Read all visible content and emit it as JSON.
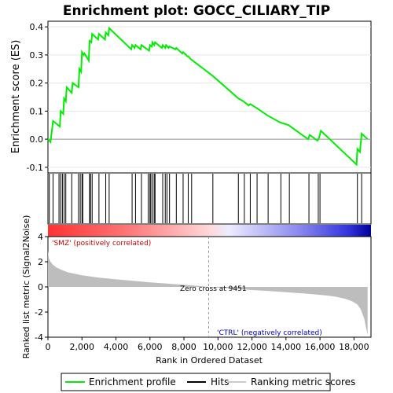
{
  "chart_data": {
    "type": "line",
    "title": "Enrichment plot: GOCC_CILIARY_TIP",
    "top_panel": {
      "ylabel": "Enrichment score (ES)",
      "ylim": [
        -0.12,
        0.42
      ],
      "yticks": [
        -0.1,
        0.0,
        0.1,
        0.2,
        0.3,
        0.4
      ],
      "ytick_labels": [
        "-0.1",
        "0.0",
        "0.1",
        "0.2",
        "0.3",
        "0.4"
      ],
      "line_color": "#00ee00",
      "series": [
        {
          "name": "Enrichment profile",
          "x": [
            0,
            150,
            300,
            700,
            750,
            900,
            950,
            1050,
            1100,
            1400,
            1450,
            1800,
            1850,
            1950,
            2000,
            2100,
            2150,
            2400,
            2450,
            2550,
            2600,
            2950,
            3000,
            3350,
            3400,
            3550,
            3600,
            4900,
            4950,
            5100,
            5150,
            5450,
            5500,
            5950,
            6000,
            6100,
            6150,
            6250,
            6300,
            6700,
            6750,
            6900,
            6950,
            7100,
            7150,
            7500,
            7550,
            7900,
            7950,
            8200,
            8250,
            8400,
            9700,
            11200,
            11500,
            11800,
            11900,
            12300,
            12900,
            13650,
            14150,
            15300,
            15400,
            15850,
            15950,
            16050,
            18150,
            18200,
            18350,
            18450,
            18800
          ],
          "y": [
            0.0,
            -0.01,
            0.065,
            0.045,
            0.1,
            0.09,
            0.145,
            0.135,
            0.185,
            0.165,
            0.2,
            0.185,
            0.25,
            0.24,
            0.31,
            0.3,
            0.305,
            0.28,
            0.35,
            0.345,
            0.375,
            0.355,
            0.375,
            0.355,
            0.38,
            0.37,
            0.395,
            0.32,
            0.335,
            0.325,
            0.335,
            0.32,
            0.335,
            0.315,
            0.335,
            0.33,
            0.345,
            0.335,
            0.345,
            0.325,
            0.335,
            0.325,
            0.335,
            0.325,
            0.33,
            0.32,
            0.325,
            0.305,
            0.31,
            0.295,
            0.295,
            0.285,
            0.225,
            0.145,
            0.135,
            0.12,
            0.125,
            0.11,
            0.085,
            0.06,
            0.05,
            0.0,
            0.015,
            -0.005,
            0.005,
            0.03,
            -0.09,
            -0.035,
            -0.045,
            0.02,
            0.0
          ]
        }
      ]
    },
    "hits": [
      80,
      300,
      650,
      750,
      850,
      950,
      1050,
      1400,
      1800,
      1900,
      2000,
      2050,
      2450,
      2500,
      2600,
      3000,
      3400,
      3600,
      4950,
      5150,
      5500,
      5900,
      6000,
      6050,
      6150,
      6250,
      6300,
      6750,
      6900,
      7000,
      7150,
      7550,
      7950,
      8250,
      8450,
      9700,
      11200,
      11550,
      11900,
      12300,
      12950,
      13700,
      14200,
      15350,
      15900,
      16000,
      18200,
      18450
    ],
    "bottom_panel": {
      "ylabel": "Ranked list metric (Signal2Noise)",
      "xlabel": "Rank in Dataset",
      "ylim": [
        -4,
        4
      ],
      "yticks": [
        -4,
        -2,
        0,
        2,
        4
      ],
      "ytick_labels": [
        "-4",
        "-2",
        "0",
        "2",
        "4"
      ],
      "metric_x": [
        0,
        50,
        150,
        300,
        500,
        800,
        1200,
        2000,
        3000,
        4000,
        5000,
        6000,
        7000,
        8000,
        9000,
        9451,
        10000,
        11000,
        12000,
        13000,
        14000,
        15000,
        16000,
        16500,
        17000,
        17500,
        17900,
        18200,
        18400,
        18600,
        18700,
        18800
      ],
      "metric_y": [
        2.9,
        2.3,
        2.0,
        1.75,
        1.55,
        1.35,
        1.15,
        0.92,
        0.73,
        0.6,
        0.48,
        0.36,
        0.26,
        0.16,
        0.06,
        0.0,
        -0.06,
        -0.15,
        -0.25,
        -0.33,
        -0.42,
        -0.52,
        -0.63,
        -0.7,
        -0.8,
        -0.95,
        -1.15,
        -1.4,
        -1.8,
        -2.5,
        -3.2,
        -3.8
      ],
      "annotation_pos": "'SMZ' (positively correlated)",
      "annotation_neg": "'CTRL' (negatively correlated)",
      "zero_cross_label": "Zero cross at 9451",
      "zero_cross_x": 9451
    },
    "xlim": [
      0,
      19000
    ],
    "xticks": [
      0,
      2000,
      4000,
      6000,
      8000,
      10000,
      12000,
      14000,
      16000,
      18000
    ],
    "xtick_labels": [
      "0",
      "2,000",
      "4,000",
      "6,000",
      "8,000",
      "10,000",
      "12,000",
      "14,000",
      "16,000",
      "18,000"
    ],
    "xlabel": "Rank in Ordered Dataset",
    "gradient_colors": {
      "positive": "#ff0000",
      "negative": "#0000cc",
      "end": "#000099"
    },
    "legend": [
      {
        "label": "Enrichment profile",
        "color": "#00ee00"
      },
      {
        "label": "Hits",
        "color": "#000000"
      },
      {
        "label": "Ranking metric scores",
        "color": "#cccccc"
      }
    ]
  }
}
